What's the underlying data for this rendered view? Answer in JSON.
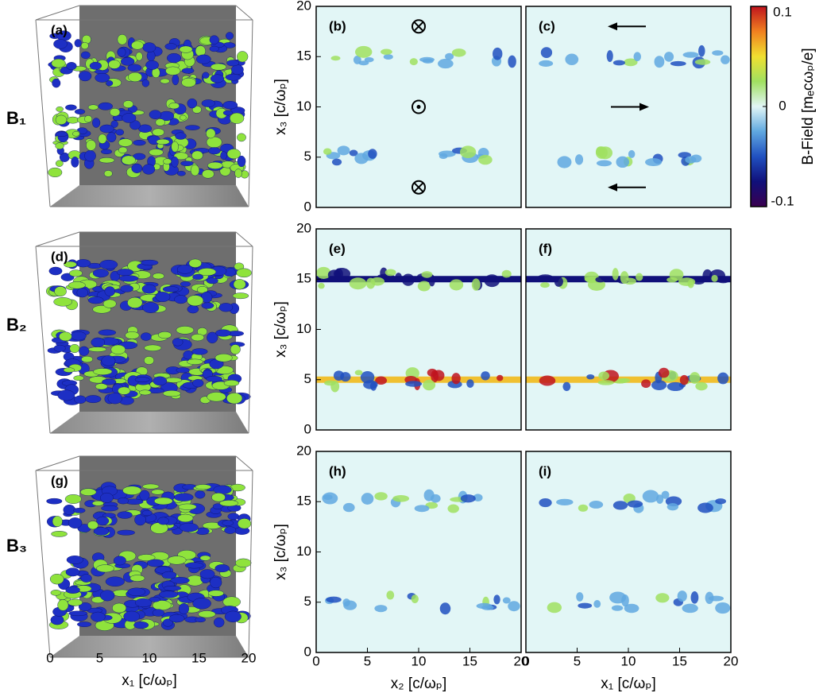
{
  "row_labels": [
    "B₁",
    "B₂",
    "B₃"
  ],
  "chart_data": [
    {
      "type": "surface3d",
      "label": "(a)"
    },
    {
      "type": "heatmap",
      "label": "(b)",
      "xlim": [
        0,
        20
      ],
      "ylim": [
        0,
        20
      ],
      "yticks": [
        0,
        5,
        10,
        15,
        20
      ],
      "ylabel": "x₃ [c/ωₚ]"
    },
    {
      "type": "heatmap",
      "label": "(c)",
      "xlim": [
        0,
        20
      ],
      "ylim": [
        0,
        20
      ]
    },
    {
      "type": "surface3d",
      "label": "(d)"
    },
    {
      "type": "heatmap",
      "label": "(e)",
      "xlim": [
        0,
        20
      ],
      "ylim": [
        0,
        20
      ],
      "yticks": [
        0,
        5,
        10,
        15,
        20
      ],
      "ylabel": "x₃ [c/ωₚ]"
    },
    {
      "type": "heatmap",
      "label": "(f)",
      "xlim": [
        0,
        20
      ],
      "ylim": [
        0,
        20
      ]
    },
    {
      "type": "surface3d",
      "label": "(g)",
      "xlim": [
        0,
        20
      ],
      "xticks": [
        0,
        5,
        10,
        15,
        20
      ],
      "xlabel": "x₁ [c/ωₚ]"
    },
    {
      "type": "heatmap",
      "label": "(h)",
      "xlim": [
        0,
        20
      ],
      "ylim": [
        0,
        20
      ],
      "xticks": [
        0,
        5,
        10,
        15,
        20
      ],
      "yticks": [
        0,
        5,
        10,
        15,
        20
      ],
      "xlabel": "x₂ [c/ωₚ]",
      "ylabel": "x₃ [c/ωₚ]"
    },
    {
      "type": "heatmap",
      "label": "(i)",
      "xlim": [
        0,
        20
      ],
      "ylim": [
        0,
        20
      ],
      "xticks": [
        0,
        5,
        10,
        15,
        20
      ],
      "xlabel": "x₁ [c/ωₚ]"
    },
    {
      "type": "colorbar",
      "label": "B-Field  [mₑcωₚ/e]",
      "ylim": [
        -0.1,
        0.1
      ],
      "yticks": [
        -0.1,
        0,
        0.1
      ],
      "colors": [
        "#3a0050",
        "#10107a",
        "#2050c0",
        "#60a8e0",
        "#e2f6f6",
        "#a0e060",
        "#f0e030",
        "#f08020",
        "#c0141e"
      ]
    }
  ]
}
